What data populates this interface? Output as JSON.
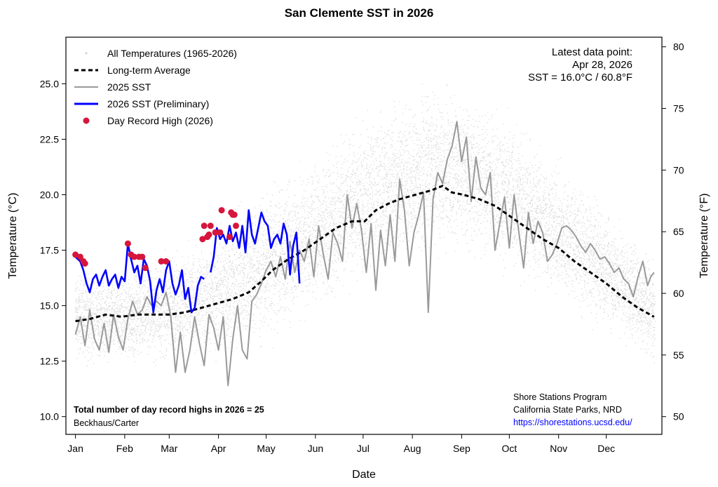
{
  "chart_data": {
    "type": "line",
    "title": "San Clemente SST in 2026",
    "xlabel": "Date",
    "ylabel": "Temperature (°C)",
    "ylabel_right": "Temperature (°F)",
    "x_unit": "day-of-year",
    "xlim": [
      -5,
      370
    ],
    "ylim": [
      9.2,
      27.1
    ],
    "y_ticks": [
      "10.0",
      "12.5",
      "15.0",
      "17.5",
      "20.0",
      "22.5",
      "25.0"
    ],
    "y_tick_values": [
      10.0,
      12.5,
      15.0,
      17.5,
      20.0,
      22.5,
      25.0
    ],
    "y_right_ticks": [
      "50",
      "55",
      "60",
      "65",
      "70",
      "75",
      "80"
    ],
    "y_right_tick_values": [
      50,
      55,
      60,
      65,
      70,
      75,
      80
    ],
    "month_ticks": [
      "Jan",
      "Feb",
      "Mar",
      "Apr",
      "May",
      "Jun",
      "Jul",
      "Aug",
      "Sep",
      "Oct",
      "Nov",
      "Dec"
    ],
    "month_tick_days": [
      1,
      32,
      60,
      91,
      121,
      152,
      182,
      213,
      244,
      274,
      305,
      335
    ],
    "legend": {
      "position": "top-left",
      "entries": [
        "All Temperatures (1965-2026)",
        "Long-term Average",
        "2025 SST",
        "2026 SST (Preliminary)",
        "Day Record High (2026)"
      ]
    },
    "annotations": {
      "latest_title": "Latest data point:",
      "latest_date": "Apr 28, 2026",
      "latest_value": "SST = 16.0°C / 60.8°F",
      "record_count": "Total number of day record highs in 2026 = 25",
      "authors": "Beckhaus/Carter",
      "program": "Shore Stations Program",
      "agency": "California State Parks, NRD",
      "url": "https://shorestations.ucsd.edu/"
    },
    "colors": {
      "all_temps": "#cfcfcf",
      "average": "#000000",
      "sst_2025": "#9a9a9a",
      "sst_2026": "#0000ff",
      "record": "#d6163c"
    },
    "series": [
      {
        "name": "Long-term Average",
        "style": "dashed",
        "points": [
          [
            1,
            14.3
          ],
          [
            10,
            14.4
          ],
          [
            20,
            14.6
          ],
          [
            30,
            14.5
          ],
          [
            40,
            14.6
          ],
          [
            50,
            14.6
          ],
          [
            60,
            14.6
          ],
          [
            70,
            14.7
          ],
          [
            80,
            14.9
          ],
          [
            90,
            15.1
          ],
          [
            100,
            15.3
          ],
          [
            110,
            15.6
          ],
          [
            118,
            16.1
          ],
          [
            125,
            16.6
          ],
          [
            135,
            17.1
          ],
          [
            145,
            17.5
          ],
          [
            155,
            18.0
          ],
          [
            165,
            18.5
          ],
          [
            175,
            18.8
          ],
          [
            183,
            18.8
          ],
          [
            190,
            19.3
          ],
          [
            198,
            19.6
          ],
          [
            205,
            19.8
          ],
          [
            215,
            20.0
          ],
          [
            225,
            20.2
          ],
          [
            232,
            20.4
          ],
          [
            238,
            20.1
          ],
          [
            245,
            20.0
          ],
          [
            255,
            19.8
          ],
          [
            265,
            19.5
          ],
          [
            275,
            19.0
          ],
          [
            285,
            18.5
          ],
          [
            295,
            18.0
          ],
          [
            305,
            17.6
          ],
          [
            315,
            17.0
          ],
          [
            325,
            16.5
          ],
          [
            335,
            16.0
          ],
          [
            345,
            15.4
          ],
          [
            355,
            14.9
          ],
          [
            365,
            14.5
          ]
        ]
      },
      {
        "name": "2025 SST",
        "style": "solid",
        "points": [
          [
            1,
            13.7
          ],
          [
            4,
            14.5
          ],
          [
            7,
            13.2
          ],
          [
            10,
            14.8
          ],
          [
            13,
            13.5
          ],
          [
            16,
            13.0
          ],
          [
            19,
            14.2
          ],
          [
            22,
            12.9
          ],
          [
            25,
            14.6
          ],
          [
            28,
            13.6
          ],
          [
            31,
            13.0
          ],
          [
            34,
            14.4
          ],
          [
            37,
            15.2
          ],
          [
            40,
            14.6
          ],
          [
            43,
            14.8
          ],
          [
            46,
            15.4
          ],
          [
            49,
            15.0
          ],
          [
            52,
            15.2
          ],
          [
            55,
            15.0
          ],
          [
            58,
            15.6
          ],
          [
            61,
            14.5
          ],
          [
            64,
            12.0
          ],
          [
            67,
            13.8
          ],
          [
            70,
            12.0
          ],
          [
            73,
            13.0
          ],
          [
            76,
            14.5
          ],
          [
            79,
            13.3
          ],
          [
            82,
            12.3
          ],
          [
            85,
            14.6
          ],
          [
            88,
            14.0
          ],
          [
            91,
            13.0
          ],
          [
            94,
            14.5
          ],
          [
            97,
            11.4
          ],
          [
            100,
            13.5
          ],
          [
            103,
            15.0
          ],
          [
            106,
            13.0
          ],
          [
            109,
            12.6
          ],
          [
            112,
            15.2
          ],
          [
            115,
            15.5
          ],
          [
            118,
            16.0
          ],
          [
            121,
            16.6
          ],
          [
            124,
            17.0
          ],
          [
            127,
            16.3
          ],
          [
            130,
            17.2
          ],
          [
            133,
            16.2
          ],
          [
            136,
            17.9
          ],
          [
            139,
            16.5
          ],
          [
            142,
            17.5
          ],
          [
            145,
            17.0
          ],
          [
            148,
            18.0
          ],
          [
            151,
            16.3
          ],
          [
            154,
            18.6
          ],
          [
            157,
            17.3
          ],
          [
            160,
            16.2
          ],
          [
            163,
            18.3
          ],
          [
            166,
            17.8
          ],
          [
            169,
            17.0
          ],
          [
            172,
            20.0
          ],
          [
            175,
            18.5
          ],
          [
            178,
            19.6
          ],
          [
            181,
            18.4
          ],
          [
            184,
            16.5
          ],
          [
            187,
            18.7
          ],
          [
            190,
            15.7
          ],
          [
            193,
            18.4
          ],
          [
            196,
            16.8
          ],
          [
            199,
            19.1
          ],
          [
            202,
            17.0
          ],
          [
            205,
            20.7
          ],
          [
            208,
            19.3
          ],
          [
            211,
            16.8
          ],
          [
            214,
            18.3
          ],
          [
            217,
            19.1
          ],
          [
            220,
            20.1
          ],
          [
            223,
            14.7
          ],
          [
            226,
            19.8
          ],
          [
            229,
            21.0
          ],
          [
            232,
            20.5
          ],
          [
            235,
            21.6
          ],
          [
            238,
            22.2
          ],
          [
            241,
            23.3
          ],
          [
            244,
            21.5
          ],
          [
            247,
            22.6
          ],
          [
            250,
            19.7
          ],
          [
            253,
            21.7
          ],
          [
            256,
            20.3
          ],
          [
            259,
            20.0
          ],
          [
            262,
            21.0
          ],
          [
            265,
            17.5
          ],
          [
            268,
            18.7
          ],
          [
            271,
            19.9
          ],
          [
            274,
            17.6
          ],
          [
            277,
            20.0
          ],
          [
            280,
            18.3
          ],
          [
            283,
            16.7
          ],
          [
            286,
            19.2
          ],
          [
            289,
            17.8
          ],
          [
            292,
            18.8
          ],
          [
            295,
            18.3
          ],
          [
            298,
            17.0
          ],
          [
            301,
            17.3
          ],
          [
            304,
            17.8
          ],
          [
            307,
            18.5
          ],
          [
            310,
            18.6
          ],
          [
            313,
            18.4
          ],
          [
            316,
            18.1
          ],
          [
            319,
            17.7
          ],
          [
            322,
            17.4
          ],
          [
            325,
            17.8
          ],
          [
            328,
            17.5
          ],
          [
            331,
            17.1
          ],
          [
            334,
            17.2
          ],
          [
            337,
            16.9
          ],
          [
            340,
            16.5
          ],
          [
            343,
            16.7
          ],
          [
            346,
            16.2
          ],
          [
            349,
            16.0
          ],
          [
            352,
            15.4
          ],
          [
            355,
            16.3
          ],
          [
            358,
            17.0
          ],
          [
            361,
            15.9
          ],
          [
            363,
            16.3
          ],
          [
            365,
            16.5
          ]
        ]
      },
      {
        "name": "2026 SST (Preliminary)",
        "style": "solid",
        "points": [
          [
            1,
            17.2
          ],
          [
            4,
            17.0
          ],
          [
            6,
            16.6
          ],
          [
            8,
            16.0
          ],
          [
            10,
            15.6
          ],
          [
            12,
            16.2
          ],
          [
            14,
            16.4
          ],
          [
            16,
            15.9
          ],
          [
            18,
            16.3
          ],
          [
            20,
            16.6
          ],
          [
            22,
            15.9
          ],
          [
            24,
            16.2
          ],
          [
            26,
            16.4
          ],
          [
            28,
            15.8
          ],
          [
            30,
            16.3
          ],
          [
            32,
            16.1
          ],
          [
            34,
            17.8
          ],
          [
            36,
            17.1
          ],
          [
            38,
            16.5
          ],
          [
            40,
            16.8
          ],
          [
            42,
            16.0
          ],
          [
            44,
            17.1
          ],
          [
            46,
            16.8
          ],
          [
            48,
            16.1
          ],
          [
            50,
            14.7
          ],
          [
            52,
            15.7
          ],
          [
            54,
            16.2
          ],
          [
            56,
            15.6
          ],
          [
            58,
            16.6
          ],
          [
            60,
            17.0
          ],
          [
            62,
            16.0
          ],
          [
            64,
            15.5
          ],
          [
            66,
            15.9
          ],
          [
            68,
            16.6
          ],
          [
            70,
            15.3
          ],
          [
            72,
            15.8
          ],
          [
            74,
            14.7
          ],
          [
            76,
            14.9
          ],
          [
            78,
            15.9
          ],
          [
            80,
            16.3
          ],
          [
            82,
            16.2
          ],
          [
            84,
            null
          ],
          [
            86,
            16.5
          ],
          [
            88,
            17.2
          ],
          [
            90,
            18.5
          ],
          [
            92,
            18.0
          ],
          [
            94,
            18.2
          ],
          [
            96,
            17.8
          ],
          [
            98,
            18.6
          ],
          [
            100,
            17.9
          ],
          [
            102,
            18.3
          ],
          [
            104,
            17.6
          ],
          [
            106,
            18.6
          ],
          [
            108,
            17.4
          ],
          [
            110,
            19.3
          ],
          [
            112,
            18.2
          ],
          [
            114,
            17.8
          ],
          [
            116,
            18.5
          ],
          [
            118,
            19.2
          ],
          [
            120,
            18.8
          ],
          [
            122,
            18.6
          ],
          [
            124,
            17.6
          ],
          [
            126,
            18.0
          ],
          [
            128,
            18.2
          ],
          [
            130,
            17.8
          ],
          [
            132,
            18.7
          ],
          [
            134,
            18.2
          ],
          [
            136,
            16.4
          ],
          [
            138,
            17.7
          ],
          [
            140,
            18.3
          ],
          [
            142,
            16.0
          ]
        ]
      },
      {
        "name": "Day Record High (2026)",
        "style": "points",
        "points": [
          [
            1,
            17.3
          ],
          [
            4,
            17.2
          ],
          [
            6,
            17.0
          ],
          [
            7,
            16.9
          ],
          [
            34,
            17.8
          ],
          [
            36,
            17.3
          ],
          [
            38,
            17.2
          ],
          [
            41,
            17.2
          ],
          [
            43,
            17.2
          ],
          [
            45,
            16.7
          ],
          [
            55,
            17.0
          ],
          [
            58,
            17.0
          ],
          [
            81,
            18.0
          ],
          [
            82,
            18.6
          ],
          [
            84,
            18.1
          ],
          [
            85,
            18.2
          ],
          [
            86,
            18.6
          ],
          [
            89,
            18.3
          ],
          [
            92,
            18.3
          ],
          [
            93,
            19.3
          ],
          [
            98,
            18.1
          ],
          [
            99,
            19.2
          ],
          [
            100,
            19.1
          ],
          [
            101,
            19.1
          ],
          [
            102,
            18.6
          ]
        ]
      }
    ],
    "cloud": {
      "name": "All Temperatures (1965-2026)",
      "style": "scatter-envelope",
      "envelope": [
        [
          1,
          12.0,
          17.3
        ],
        [
          15,
          12.0,
          16.8
        ],
        [
          30,
          12.0,
          16.8
        ],
        [
          45,
          12.0,
          17.5
        ],
        [
          60,
          12.0,
          17.8
        ],
        [
          75,
          12.0,
          18.2
        ],
        [
          90,
          12.0,
          19.3
        ],
        [
          105,
          12.3,
          20.0
        ],
        [
          120,
          12.7,
          21.0
        ],
        [
          135,
          13.3,
          21.7
        ],
        [
          150,
          14.2,
          22.3
        ],
        [
          165,
          14.8,
          23.2
        ],
        [
          180,
          15.5,
          24.0
        ],
        [
          195,
          16.0,
          24.8
        ],
        [
          210,
          16.2,
          25.3
        ],
        [
          225,
          16.6,
          25.6
        ],
        [
          240,
          16.8,
          25.5
        ],
        [
          255,
          16.5,
          25.0
        ],
        [
          270,
          16.0,
          24.3
        ],
        [
          285,
          15.3,
          23.5
        ],
        [
          300,
          14.8,
          22.4
        ],
        [
          315,
          14.2,
          21.3
        ],
        [
          330,
          13.6,
          20.2
        ],
        [
          345,
          13.0,
          19.1
        ],
        [
          360,
          12.2,
          18.0
        ],
        [
          365,
          12.0,
          17.6
        ]
      ]
    }
  }
}
